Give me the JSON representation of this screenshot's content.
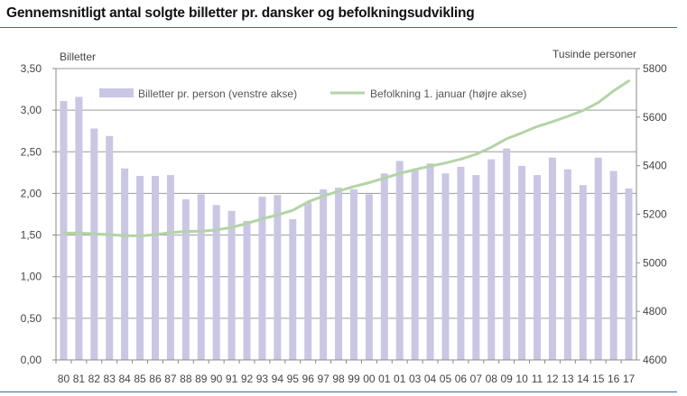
{
  "title": "Gennemsnitligt antal solgte billetter pr. dansker og befolkningsudvikling",
  "chart_data": {
    "type": "bar+line",
    "title": "Gennemsnitligt antal solgte billetter pr. dansker og befolkningsudvikling",
    "y_left_label": "Billetter",
    "y_right_label": "Tusinde personer",
    "categories": [
      "80",
      "81",
      "82",
      "83",
      "84",
      "85",
      "86",
      "87",
      "88",
      "89",
      "90",
      "91",
      "92",
      "93",
      "94",
      "95",
      "96",
      "97",
      "98",
      "99",
      "00",
      "01",
      "01",
      "03",
      "04",
      "05",
      "06",
      "07",
      "08",
      "09",
      "10",
      "11",
      "12",
      "13",
      "14",
      "15",
      "16",
      "17"
    ],
    "y_left_ticks": [
      "0,00",
      "0,50",
      "1,00",
      "1,50",
      "2,00",
      "2,50",
      "3,00",
      "3,50"
    ],
    "y_right_ticks": [
      "4600",
      "4800",
      "5000",
      "5200",
      "5400",
      "5600",
      "5800"
    ],
    "ylim_left": [
      0,
      3.5
    ],
    "ylim_right": [
      4600,
      5800
    ],
    "grid": true,
    "legend_position": "top",
    "series": [
      {
        "name": "Billetter pr. person (venstre akse)",
        "type": "bar",
        "axis": "left",
        "color": "#c9c7e3",
        "values": [
          3.11,
          3.16,
          2.78,
          2.69,
          2.3,
          2.21,
          2.21,
          2.22,
          1.93,
          1.99,
          1.86,
          1.79,
          1.67,
          1.96,
          1.98,
          1.69,
          1.89,
          2.05,
          2.07,
          2.05,
          1.99,
          2.24,
          2.39,
          2.28,
          2.36,
          2.24,
          2.32,
          2.22,
          2.41,
          2.54,
          2.33,
          2.22,
          2.43,
          2.29,
          2.1,
          2.43,
          2.27,
          2.06
        ]
      },
      {
        "name": "Befolkning 1. januar (højre akse)",
        "type": "line",
        "axis": "right",
        "color": "#b5d3a7",
        "values": [
          5122,
          5123,
          5119,
          5116,
          5112,
          5111,
          5116,
          5125,
          5129,
          5130,
          5135,
          5146,
          5162,
          5181,
          5197,
          5216,
          5251,
          5275,
          5295,
          5314,
          5330,
          5349,
          5368,
          5384,
          5398,
          5411,
          5427,
          5447,
          5476,
          5511,
          5535,
          5561,
          5581,
          5603,
          5627,
          5660,
          5708,
          5749
        ]
      }
    ]
  }
}
